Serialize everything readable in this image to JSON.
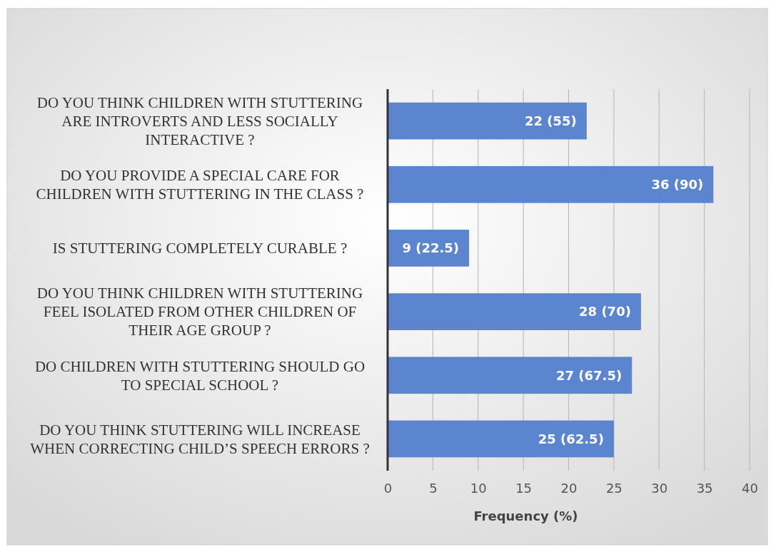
{
  "chart_data": {
    "type": "bar",
    "orientation": "horizontal",
    "xlabel": "Frequency (%)",
    "categories": [
      "DO YOU THINK CHILDREN WITH STUTTERING ARE INTROVERTS AND LESS SOCIALLY INTERACTIVE ?",
      "DO YOU PROVIDE A SPECIAL CARE FOR CHILDREN WITH STUTTERING IN THE CLASS ?",
      "IS STUTTERING COMPLETELY CURABLE ?",
      "DO YOU THINK CHILDREN WITH STUTTERING FEEL ISOLATED FROM OTHER CHILDREN OF THEIR AGE GROUP ?",
      "DO CHILDREN WITH STUTTERING SHOULD GO TO SPECIAL SCHOOL ?",
      "DO YOU THINK STUTTERING WILL INCREASE WHEN CORRECTING CHILD’S SPEECH ERRORS ?"
    ],
    "values": [
      22,
      36,
      9,
      28,
      27,
      25
    ],
    "value_labels": [
      "22 (55)",
      "36 (90)",
      "9 (22.5)",
      "28 (70)",
      "27 (67.5)",
      "25 (62.5)"
    ],
    "color": "#5b85cf",
    "xlim": [
      0,
      40
    ],
    "xticks": [
      0,
      5,
      10,
      15,
      20,
      25,
      30,
      35,
      40
    ],
    "grid": "x"
  }
}
